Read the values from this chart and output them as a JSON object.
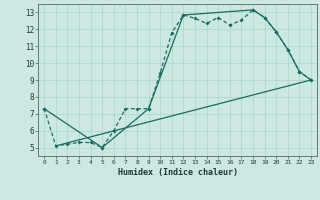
{
  "title": "",
  "xlabel": "Humidex (Indice chaleur)",
  "bg_color": "#cce8e4",
  "line_color": "#1a6b5a",
  "xlim": [
    -0.5,
    23.5
  ],
  "ylim": [
    4.5,
    13.5
  ],
  "xticks": [
    0,
    1,
    2,
    3,
    4,
    5,
    6,
    7,
    8,
    9,
    10,
    11,
    12,
    13,
    14,
    15,
    16,
    17,
    18,
    19,
    20,
    21,
    22,
    23
  ],
  "yticks": [
    5,
    6,
    7,
    8,
    9,
    10,
    11,
    12,
    13
  ],
  "line1_x": [
    0,
    1,
    2,
    3,
    4,
    5,
    6,
    7,
    8,
    9,
    10,
    11,
    12,
    13,
    14,
    15,
    16,
    17,
    18,
    19,
    20,
    21,
    22,
    23
  ],
  "line1_y": [
    7.3,
    5.1,
    5.2,
    5.3,
    5.3,
    5.0,
    6.0,
    7.3,
    7.3,
    7.3,
    9.4,
    11.8,
    12.85,
    12.65,
    12.35,
    12.7,
    12.25,
    12.55,
    13.15,
    12.7,
    11.85,
    10.8,
    9.5,
    9.0
  ],
  "line2_x": [
    1,
    23
  ],
  "line2_y": [
    5.1,
    9.0
  ],
  "line3_x": [
    0,
    5,
    9,
    12,
    18,
    19,
    20,
    21,
    22,
    23
  ],
  "line3_y": [
    7.3,
    5.0,
    7.3,
    12.85,
    13.15,
    12.7,
    11.85,
    10.8,
    9.5,
    9.0
  ],
  "grid_color": "#b0d8d0"
}
